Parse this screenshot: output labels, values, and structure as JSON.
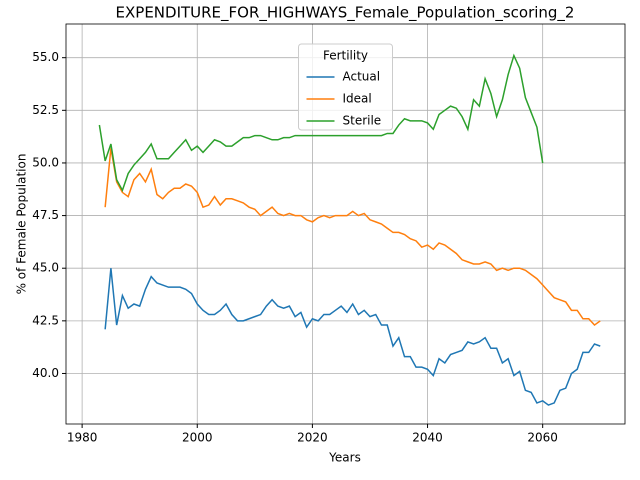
{
  "chart_data": {
    "type": "line",
    "title": "EXPENDITURE_FOR_HIGHWAYS_Female_Population_scoring_2",
    "x_label": "Years",
    "y_label": "% of Female Population",
    "legend_title": "Fertility",
    "legend": "upper center",
    "grid": true,
    "x": [
      1983,
      1984,
      1985,
      1986,
      1987,
      1988,
      1989,
      1990,
      1991,
      1992,
      1993,
      1994,
      1995,
      1996,
      1997,
      1998,
      1999,
      2000,
      2001,
      2002,
      2003,
      2004,
      2005,
      2006,
      2007,
      2008,
      2009,
      2010,
      2011,
      2012,
      2013,
      2014,
      2015,
      2016,
      2017,
      2018,
      2019,
      2020,
      2021,
      2022,
      2023,
      2024,
      2025,
      2026,
      2027,
      2028,
      2029,
      2030,
      2031,
      2032,
      2033,
      2034,
      2035,
      2036,
      2037,
      2038,
      2039,
      2040,
      2041,
      2042,
      2043,
      2044,
      2045,
      2046,
      2047,
      2048,
      2049,
      2050,
      2051,
      2052,
      2053,
      2054,
      2055,
      2056,
      2057,
      2058,
      2059,
      2060,
      2061,
      2062,
      2063,
      2064,
      2065,
      2066,
      2067,
      2068,
      2069,
      2070
    ],
    "series": [
      {
        "name": "Actual",
        "color": "#1f77b4",
        "values": [
          null,
          42.1,
          45.0,
          42.3,
          43.7,
          43.1,
          43.3,
          43.2,
          44.0,
          44.6,
          44.3,
          44.2,
          44.1,
          44.1,
          44.1,
          44.0,
          43.8,
          43.3,
          43.0,
          42.8,
          42.8,
          43.0,
          43.3,
          42.8,
          42.5,
          42.5,
          42.6,
          42.7,
          42.8,
          43.2,
          43.5,
          43.2,
          43.1,
          43.2,
          42.7,
          42.9,
          42.2,
          42.6,
          42.5,
          42.8,
          42.8,
          43.0,
          43.2,
          42.9,
          43.3,
          42.8,
          43.0,
          42.7,
          42.8,
          42.3,
          42.3,
          41.3,
          41.7,
          40.8,
          40.8,
          40.3,
          40.3,
          40.2,
          39.9,
          40.7,
          40.5,
          40.9,
          41.0,
          41.1,
          41.5,
          41.4,
          41.5,
          41.7,
          41.2,
          41.2,
          40.5,
          40.7,
          39.9,
          40.1,
          39.2,
          39.1,
          38.6,
          38.7,
          38.5,
          38.6,
          39.2,
          39.3,
          40.0,
          40.2,
          41.0,
          41.0,
          41.4,
          41.3
        ]
      },
      {
        "name": "Ideal",
        "color": "#ff7f0e",
        "values": [
          null,
          47.9,
          50.7,
          49.1,
          48.6,
          48.4,
          49.2,
          49.5,
          49.1,
          49.7,
          48.5,
          48.3,
          48.6,
          48.8,
          48.8,
          49.0,
          48.9,
          48.6,
          47.9,
          48.0,
          48.4,
          48.0,
          48.3,
          48.3,
          48.2,
          48.1,
          47.9,
          47.8,
          47.5,
          47.7,
          47.9,
          47.6,
          47.5,
          47.6,
          47.5,
          47.5,
          47.3,
          47.2,
          47.4,
          47.5,
          47.4,
          47.5,
          47.5,
          47.5,
          47.7,
          47.5,
          47.6,
          47.3,
          47.2,
          47.1,
          46.9,
          46.7,
          46.7,
          46.6,
          46.4,
          46.3,
          46.0,
          46.1,
          45.9,
          46.2,
          46.1,
          45.9,
          45.7,
          45.4,
          45.3,
          45.2,
          45.2,
          45.3,
          45.2,
          44.9,
          45.0,
          44.9,
          45.0,
          45.0,
          44.9,
          44.7,
          44.5,
          44.2,
          43.9,
          43.6,
          43.5,
          43.4,
          43.0,
          43.0,
          42.6,
          42.6,
          42.3,
          42.5
        ]
      },
      {
        "name": "Sterile",
        "color": "#2ca02c",
        "values": [
          51.8,
          50.1,
          50.9,
          49.2,
          48.7,
          49.5,
          49.9,
          50.2,
          50.5,
          50.9,
          50.2,
          50.2,
          50.2,
          50.5,
          50.8,
          51.1,
          50.6,
          50.8,
          50.5,
          50.8,
          51.1,
          51.0,
          50.8,
          50.8,
          51.0,
          51.2,
          51.2,
          51.3,
          51.3,
          51.2,
          51.1,
          51.1,
          51.2,
          51.2,
          51.3,
          51.3,
          51.3,
          51.3,
          51.3,
          51.3,
          51.3,
          51.3,
          51.3,
          51.3,
          51.3,
          51.3,
          51.3,
          51.3,
          51.3,
          51.3,
          51.4,
          51.4,
          51.8,
          52.1,
          52.0,
          52.0,
          52.0,
          51.9,
          51.6,
          52.3,
          52.5,
          52.7,
          52.6,
          52.2,
          51.6,
          53.0,
          52.7,
          54.0,
          53.3,
          52.2,
          53.0,
          54.2,
          55.1,
          54.5,
          53.1,
          52.4,
          51.7,
          50.0,
          null,
          null,
          null,
          null,
          null,
          null,
          null,
          null,
          null,
          null
        ]
      }
    ],
    "xlim": [
      1977.2,
      2074.3
    ],
    "xticks": [
      1980,
      2000,
      2020,
      2040,
      2060
    ],
    "ylim": [
      37.6,
      56.6
    ],
    "yticks": [
      {
        "value": 40,
        "label": "40.0"
      },
      {
        "value": 42.5,
        "label": "42.5"
      },
      {
        "value": 45,
        "label": "45.0"
      },
      {
        "value": 47.5,
        "label": "47.5"
      },
      {
        "value": 50,
        "label": "50.0"
      },
      {
        "value": 52.5,
        "label": "52.5"
      },
      {
        "value": 55,
        "label": "55.0"
      }
    ]
  }
}
